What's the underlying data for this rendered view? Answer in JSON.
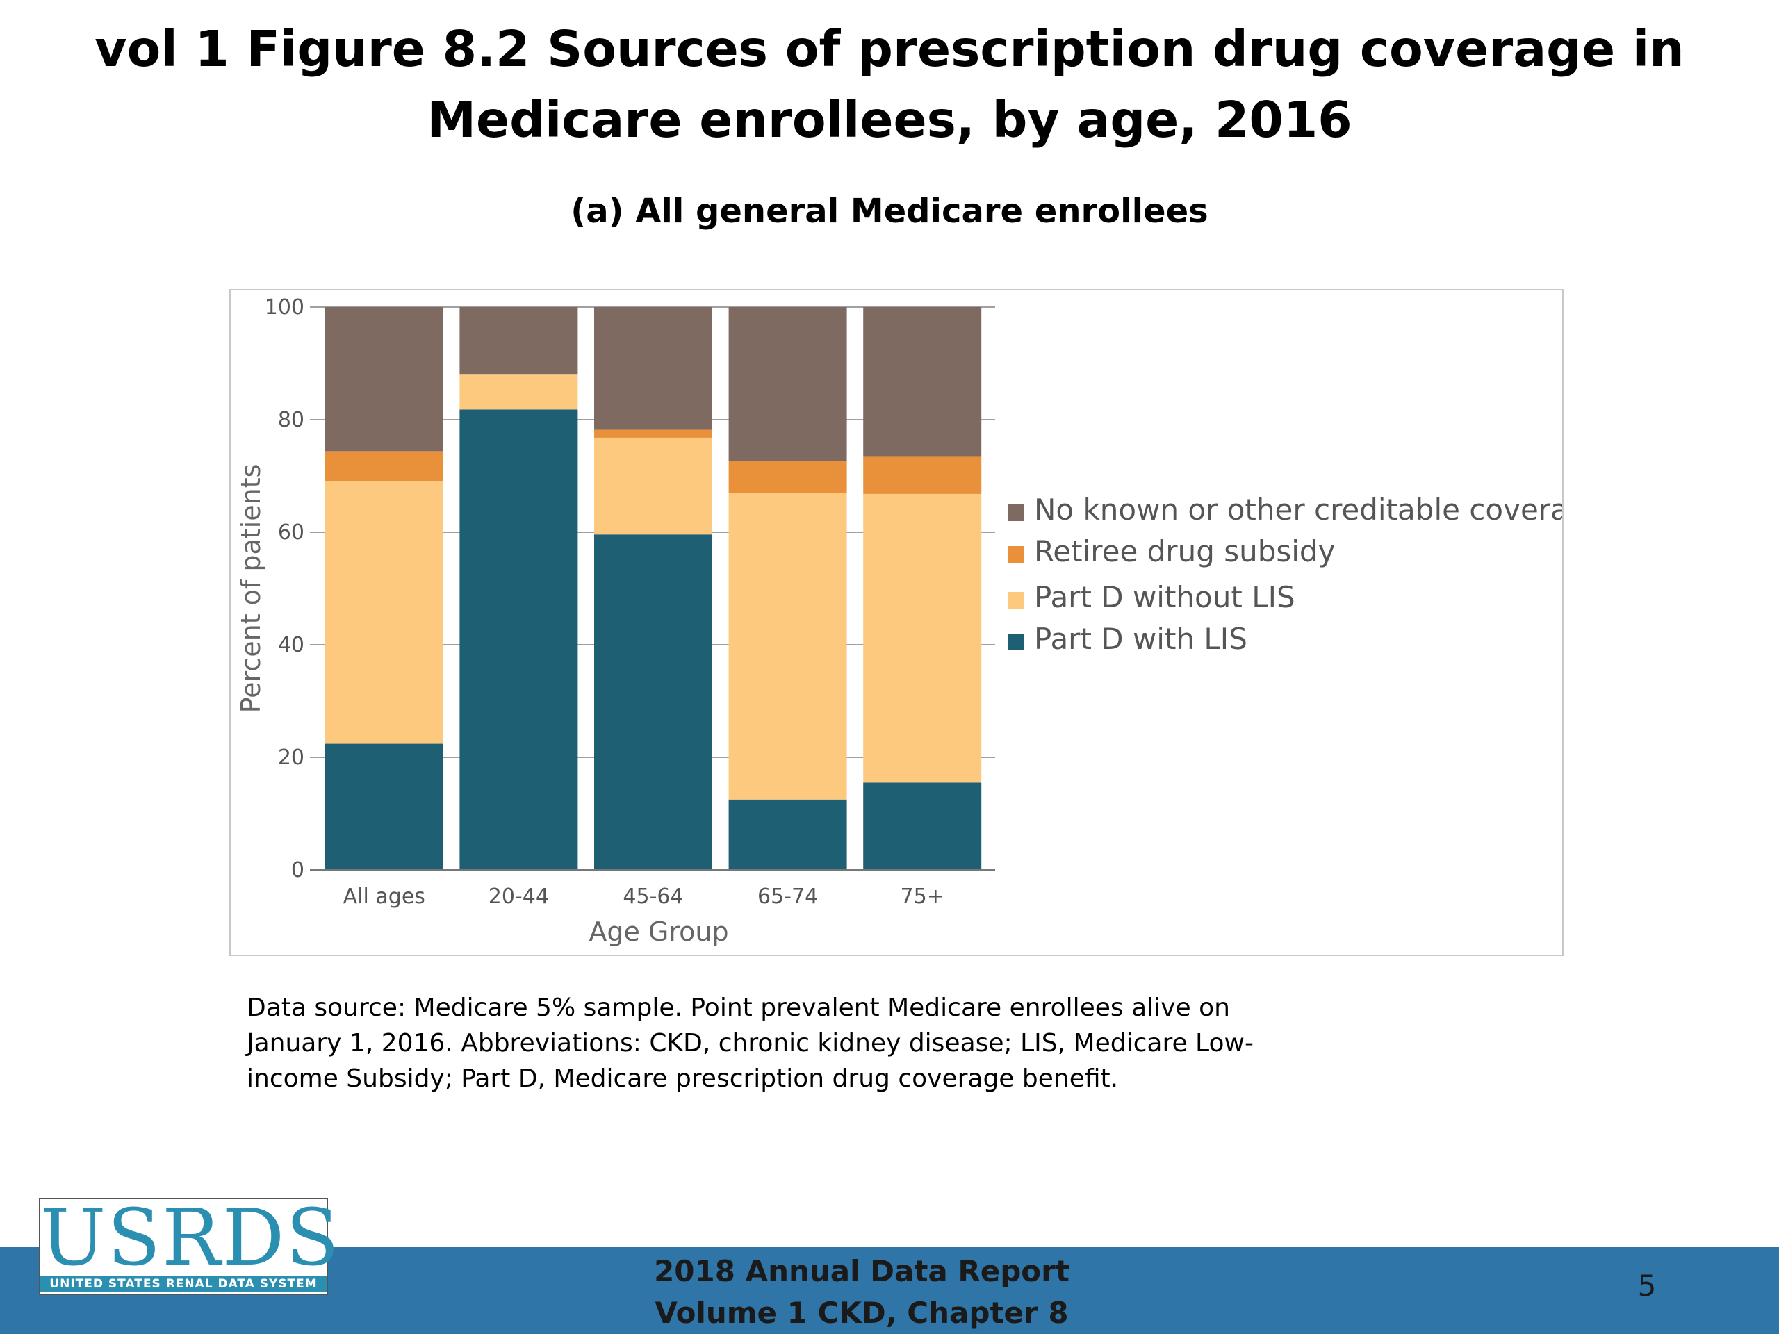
{
  "title": "vol 1 Figure 8.2 Sources of prescription drug coverage in Medicare enrollees, by age, 2016",
  "subtitle": "(a) All general Medicare enrollees",
  "note": "Data source: Medicare 5% sample. Point prevalent Medicare enrollees alive on January 1, 2016. Abbreviations: CKD, chronic kidney disease; LIS, Medicare Low-income Subsidy; Part D, Medicare prescription drug coverage benefit.",
  "footer": {
    "line1": "2018 Annual Data Report",
    "line2": "Volume 1 CKD, Chapter 8",
    "page_number": "5"
  },
  "logo": {
    "main": "USRDS",
    "sub": "UNITED STATES RENAL DATA SYSTEM"
  },
  "chart_data": {
    "type": "bar",
    "stacked": true,
    "xlabel": "Age Group",
    "ylabel": "Percent of patients",
    "ylim": [
      0,
      100
    ],
    "yticks": [
      0,
      20,
      40,
      60,
      80,
      100
    ],
    "categories": [
      "All ages",
      "20-44",
      "45-64",
      "65-74",
      "75+"
    ],
    "series": [
      {
        "name": "Part D with LIS",
        "color": "#1e5f74",
        "values": [
          22.4,
          81.8,
          59.6,
          12.5,
          15.5
        ]
      },
      {
        "name": "Part D without LIS",
        "color": "#fcc97e",
        "values": [
          46.6,
          6.2,
          17.2,
          54.5,
          51.3
        ]
      },
      {
        "name": "Retiree drug subsidy",
        "color": "#e8903a",
        "values": [
          5.4,
          0,
          1.4,
          5.6,
          6.6
        ]
      },
      {
        "name": "No known or other creditable coverage",
        "color": "#7e6a61",
        "values": [
          25.6,
          12.0,
          21.8,
          27.4,
          26.6
        ]
      }
    ],
    "legend_position": "right",
    "legend_order": [
      "No known or other creditable coverage",
      "Retiree drug subsidy",
      "Part D without LIS",
      "Part D with LIS"
    ]
  }
}
